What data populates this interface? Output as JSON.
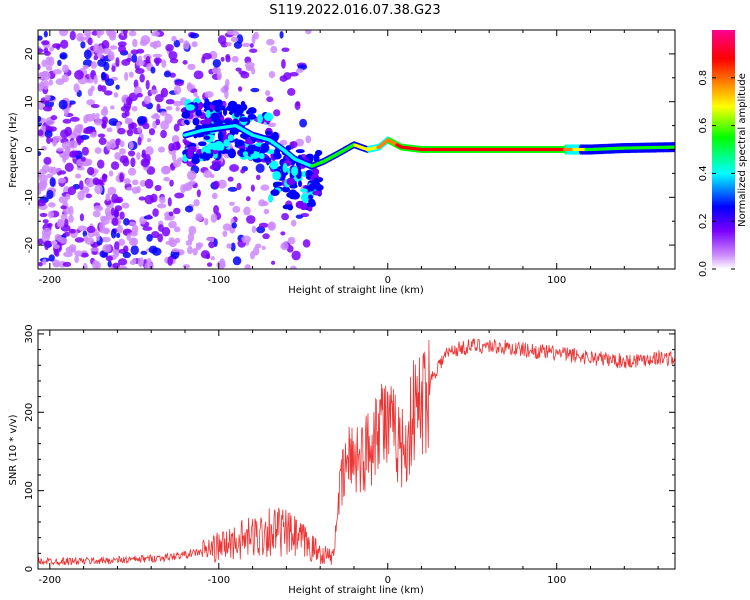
{
  "figure": {
    "title": "S119.2022.016.07.38.G23"
  },
  "chart_data": [
    {
      "type": "heatmap",
      "xlabel": "Height of straight line (km)",
      "ylabel": "Frequency (Hz)",
      "xlim": [
        -207,
        170
      ],
      "ylim": [
        -25,
        25
      ],
      "xticks": [
        -200,
        -100,
        0,
        100
      ],
      "yticks": [
        -20,
        -10,
        0,
        10,
        20
      ],
      "colorbar": {
        "label": "Normalized spectral amplitude",
        "range": [
          0,
          1
        ],
        "ticks": [
          0.0,
          0.2,
          0.4,
          0.6,
          0.8
        ],
        "tick_labels": [
          "0.0",
          "0.2",
          "0.4",
          "0.6",
          "0.8"
        ],
        "colors": [
          "#ffffff",
          "#cc88ff",
          "#7a00ff",
          "#0000ff",
          "#00ffff",
          "#00ff00",
          "#ffff00",
          "#ff8000",
          "#ff0000",
          "#ff0090"
        ]
      },
      "ridge": [
        {
          "x": -120,
          "y": 3.0,
          "amp": 0.3
        },
        {
          "x": -110,
          "y": 4.0,
          "amp": 0.3
        },
        {
          "x": -100,
          "y": 4.5,
          "amp": 0.35
        },
        {
          "x": -90,
          "y": 5.0,
          "amp": 0.35
        },
        {
          "x": -80,
          "y": 3.0,
          "amp": 0.3
        },
        {
          "x": -70,
          "y": 2.0,
          "amp": 0.3
        },
        {
          "x": -62,
          "y": 0.0,
          "amp": 0.3
        },
        {
          "x": -55,
          "y": -2.0,
          "amp": 0.35
        },
        {
          "x": -45,
          "y": -3.5,
          "amp": 0.4
        },
        {
          "x": -38,
          "y": -2.5,
          "amp": 0.45
        },
        {
          "x": -30,
          "y": -1.0,
          "amp": 0.5
        },
        {
          "x": -20,
          "y": 1.0,
          "amp": 0.55
        },
        {
          "x": -12,
          "y": 0.0,
          "amp": 0.6
        },
        {
          "x": -5,
          "y": 0.5,
          "amp": 0.7
        },
        {
          "x": 0,
          "y": 2.0,
          "amp": 0.75
        },
        {
          "x": 8,
          "y": 0.5,
          "amp": 0.8
        },
        {
          "x": 20,
          "y": 0.0,
          "amp": 0.85
        },
        {
          "x": 60,
          "y": 0.0,
          "amp": 0.85
        },
        {
          "x": 100,
          "y": 0.0,
          "amp": 0.85
        },
        {
          "x": 120,
          "y": 0.0,
          "amp": 0.5
        },
        {
          "x": 140,
          "y": 0.3,
          "amp": 0.45
        },
        {
          "x": 170,
          "y": 0.5,
          "amp": 0.45
        }
      ]
    },
    {
      "type": "line",
      "xlabel": "Height of straight line (km)",
      "ylabel": "SNR (10 * v/v)",
      "xlim": [
        -207,
        170
      ],
      "ylim": [
        0,
        305
      ],
      "xticks": [
        -200,
        -100,
        0,
        100
      ],
      "yticks": [
        0,
        100,
        200,
        300
      ],
      "series": [
        {
          "color": "#ee3333",
          "x": [
            -207,
            -180,
            -150,
            -130,
            -115,
            -100,
            -90,
            -80,
            -70,
            -60,
            -50,
            -40,
            -32,
            -30,
            -25,
            -20,
            -15,
            -10,
            -5,
            0,
            5,
            10,
            15,
            20,
            25,
            30,
            35,
            40,
            50,
            60,
            80,
            100,
            120,
            140,
            160,
            170
          ],
          "values": [
            10,
            10,
            12,
            15,
            20,
            28,
            35,
            40,
            50,
            45,
            35,
            20,
            15,
            80,
            130,
            150,
            140,
            160,
            200,
            180,
            170,
            150,
            200,
            210,
            240,
            260,
            275,
            280,
            285,
            285,
            280,
            275,
            270,
            265,
            270,
            268
          ]
        }
      ]
    }
  ]
}
